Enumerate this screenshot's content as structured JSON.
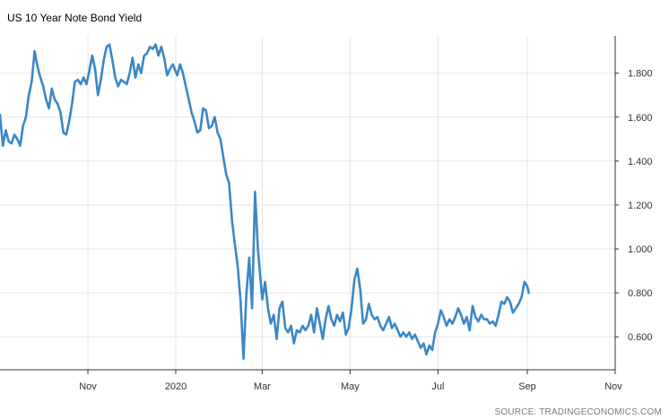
{
  "chart_data": {
    "type": "line",
    "title": "US 10 Year Note Bond Yield",
    "source": "SOURCE: TRADINGECONOMICS.COM",
    "xlabel": "",
    "ylabel": "",
    "y_ticks": [
      0.6,
      0.8,
      1.0,
      1.2,
      1.4,
      1.6,
      1.8
    ],
    "y_tick_labels": [
      "0.600",
      "0.800",
      "1.000",
      "1.200",
      "1.400",
      "1.600",
      "1.800"
    ],
    "ylim": [
      0.45,
      1.97
    ],
    "x_ticks": [
      {
        "date": "2019-11-01",
        "label": "Nov"
      },
      {
        "date": "2020-01-01",
        "label": "2020"
      },
      {
        "date": "2020-03-01",
        "label": "Mar"
      },
      {
        "date": "2020-05-01",
        "label": "May"
      },
      {
        "date": "2020-07-01",
        "label": "Jul"
      },
      {
        "date": "2020-09-01",
        "label": "Sep"
      },
      {
        "date": "2020-11-01",
        "label": "Nov"
      }
    ],
    "xlim": [
      "2019-09-01",
      "2020-11-01"
    ],
    "grid": true,
    "line_color": "#3b87c6",
    "series": [
      {
        "name": "",
        "points": [
          [
            "2019-09-01",
            1.61
          ],
          [
            "2019-09-03",
            1.47
          ],
          [
            "2019-09-05",
            1.54
          ],
          [
            "2019-09-07",
            1.49
          ],
          [
            "2019-09-09",
            1.48
          ],
          [
            "2019-09-11",
            1.52
          ],
          [
            "2019-09-13",
            1.5
          ],
          [
            "2019-09-15",
            1.47
          ],
          [
            "2019-09-17",
            1.56
          ],
          [
            "2019-09-19",
            1.6
          ],
          [
            "2019-09-21",
            1.7
          ],
          [
            "2019-09-23",
            1.76
          ],
          [
            "2019-09-25",
            1.9
          ],
          [
            "2019-09-27",
            1.83
          ],
          [
            "2019-09-29",
            1.78
          ],
          [
            "2019-10-01",
            1.74
          ],
          [
            "2019-10-03",
            1.68
          ],
          [
            "2019-10-05",
            1.64
          ],
          [
            "2019-10-07",
            1.73
          ],
          [
            "2019-10-09",
            1.68
          ],
          [
            "2019-10-11",
            1.66
          ],
          [
            "2019-10-13",
            1.62
          ],
          [
            "2019-10-15",
            1.53
          ],
          [
            "2019-10-17",
            1.52
          ],
          [
            "2019-10-19",
            1.58
          ],
          [
            "2019-10-21",
            1.66
          ],
          [
            "2019-10-23",
            1.76
          ],
          [
            "2019-10-25",
            1.77
          ],
          [
            "2019-10-27",
            1.75
          ],
          [
            "2019-10-29",
            1.78
          ],
          [
            "2019-10-31",
            1.75
          ],
          [
            "2019-11-02",
            1.81
          ],
          [
            "2019-11-04",
            1.88
          ],
          [
            "2019-11-06",
            1.82
          ],
          [
            "2019-11-08",
            1.7
          ],
          [
            "2019-11-10",
            1.77
          ],
          [
            "2019-11-12",
            1.86
          ],
          [
            "2019-11-14",
            1.92
          ],
          [
            "2019-11-16",
            1.93
          ],
          [
            "2019-11-18",
            1.86
          ],
          [
            "2019-11-20",
            1.78
          ],
          [
            "2019-11-22",
            1.74
          ],
          [
            "2019-11-24",
            1.77
          ],
          [
            "2019-11-26",
            1.76
          ],
          [
            "2019-11-28",
            1.75
          ],
          [
            "2019-11-30",
            1.8
          ],
          [
            "2019-12-02",
            1.87
          ],
          [
            "2019-12-04",
            1.78
          ],
          [
            "2019-12-06",
            1.84
          ],
          [
            "2019-12-08",
            1.8
          ],
          [
            "2019-12-10",
            1.88
          ],
          [
            "2019-12-12",
            1.89
          ],
          [
            "2019-12-14",
            1.92
          ],
          [
            "2019-12-16",
            1.91
          ],
          [
            "2019-12-18",
            1.93
          ],
          [
            "2019-12-20",
            1.88
          ],
          [
            "2019-12-22",
            1.92
          ],
          [
            "2019-12-24",
            1.87
          ],
          [
            "2019-12-26",
            1.79
          ],
          [
            "2019-12-28",
            1.82
          ],
          [
            "2019-12-30",
            1.84
          ],
          [
            "2020-01-02",
            1.79
          ],
          [
            "2020-01-04",
            1.84
          ],
          [
            "2020-01-06",
            1.8
          ],
          [
            "2020-01-08",
            1.74
          ],
          [
            "2020-01-10",
            1.68
          ],
          [
            "2020-01-12",
            1.62
          ],
          [
            "2020-01-14",
            1.58
          ],
          [
            "2020-01-16",
            1.53
          ],
          [
            "2020-01-18",
            1.54
          ],
          [
            "2020-01-20",
            1.64
          ],
          [
            "2020-01-22",
            1.63
          ],
          [
            "2020-01-24",
            1.55
          ],
          [
            "2020-01-26",
            1.56
          ],
          [
            "2020-01-28",
            1.6
          ],
          [
            "2020-01-30",
            1.53
          ],
          [
            "2020-02-01",
            1.5
          ],
          [
            "2020-02-03",
            1.42
          ],
          [
            "2020-02-05",
            1.34
          ],
          [
            "2020-02-07",
            1.3
          ],
          [
            "2020-02-09",
            1.13
          ],
          [
            "2020-02-11",
            1.02
          ],
          [
            "2020-02-13",
            0.92
          ],
          [
            "2020-02-15",
            0.76
          ],
          [
            "2020-02-17",
            0.5
          ],
          [
            "2020-02-19",
            0.79
          ],
          [
            "2020-02-21",
            0.96
          ],
          [
            "2020-02-23",
            0.73
          ],
          [
            "2020-02-25",
            1.26
          ],
          [
            "2020-02-27",
            1.0
          ],
          [
            "2020-03-01",
            0.77
          ],
          [
            "2020-03-03",
            0.85
          ],
          [
            "2020-03-05",
            0.73
          ],
          [
            "2020-03-07",
            0.66
          ],
          [
            "2020-03-09",
            0.7
          ],
          [
            "2020-03-11",
            0.59
          ],
          [
            "2020-03-13",
            0.73
          ],
          [
            "2020-03-15",
            0.76
          ],
          [
            "2020-03-17",
            0.64
          ],
          [
            "2020-03-19",
            0.62
          ],
          [
            "2020-03-21",
            0.65
          ],
          [
            "2020-03-23",
            0.57
          ],
          [
            "2020-03-25",
            0.63
          ],
          [
            "2020-03-27",
            0.62
          ],
          [
            "2020-03-29",
            0.65
          ],
          [
            "2020-03-31",
            0.63
          ],
          [
            "2020-04-02",
            0.65
          ],
          [
            "2020-04-04",
            0.7
          ],
          [
            "2020-04-06",
            0.62
          ],
          [
            "2020-04-08",
            0.73
          ],
          [
            "2020-04-10",
            0.66
          ],
          [
            "2020-04-12",
            0.59
          ],
          [
            "2020-04-14",
            0.68
          ],
          [
            "2020-04-16",
            0.74
          ],
          [
            "2020-04-18",
            0.68
          ],
          [
            "2020-04-20",
            0.65
          ],
          [
            "2020-04-22",
            0.7
          ],
          [
            "2020-04-24",
            0.67
          ],
          [
            "2020-04-26",
            0.71
          ],
          [
            "2020-04-28",
            0.61
          ],
          [
            "2020-04-30",
            0.64
          ],
          [
            "2020-05-02",
            0.73
          ],
          [
            "2020-05-04",
            0.86
          ],
          [
            "2020-05-06",
            0.91
          ],
          [
            "2020-05-08",
            0.82
          ],
          [
            "2020-05-10",
            0.66
          ],
          [
            "2020-05-12",
            0.68
          ],
          [
            "2020-05-14",
            0.75
          ],
          [
            "2020-05-16",
            0.7
          ],
          [
            "2020-05-18",
            0.68
          ],
          [
            "2020-05-20",
            0.69
          ],
          [
            "2020-05-22",
            0.65
          ],
          [
            "2020-05-24",
            0.63
          ],
          [
            "2020-05-26",
            0.66
          ],
          [
            "2020-05-28",
            0.69
          ],
          [
            "2020-05-30",
            0.64
          ],
          [
            "2020-06-01",
            0.66
          ],
          [
            "2020-06-03",
            0.63
          ],
          [
            "2020-06-05",
            0.6
          ],
          [
            "2020-06-07",
            0.62
          ],
          [
            "2020-06-09",
            0.6
          ],
          [
            "2020-06-11",
            0.62
          ],
          [
            "2020-06-13",
            0.59
          ],
          [
            "2020-06-15",
            0.61
          ],
          [
            "2020-06-17",
            0.58
          ],
          [
            "2020-06-19",
            0.55
          ],
          [
            "2020-06-21",
            0.57
          ],
          [
            "2020-06-23",
            0.52
          ],
          [
            "2020-06-25",
            0.56
          ],
          [
            "2020-06-27",
            0.54
          ],
          [
            "2020-06-29",
            0.62
          ],
          [
            "2020-07-01",
            0.66
          ],
          [
            "2020-07-03",
            0.72
          ],
          [
            "2020-07-05",
            0.69
          ],
          [
            "2020-07-07",
            0.65
          ],
          [
            "2020-07-09",
            0.68
          ],
          [
            "2020-07-11",
            0.66
          ],
          [
            "2020-07-13",
            0.69
          ],
          [
            "2020-07-15",
            0.73
          ],
          [
            "2020-07-17",
            0.7
          ],
          [
            "2020-07-19",
            0.66
          ],
          [
            "2020-07-21",
            0.69
          ],
          [
            "2020-07-23",
            0.63
          ],
          [
            "2020-07-25",
            0.74
          ],
          [
            "2020-07-27",
            0.69
          ],
          [
            "2020-07-29",
            0.67
          ],
          [
            "2020-07-31",
            0.7
          ],
          [
            "2020-08-02",
            0.68
          ],
          [
            "2020-08-04",
            0.68
          ],
          [
            "2020-08-06",
            0.66
          ],
          [
            "2020-08-08",
            0.67
          ],
          [
            "2020-08-10",
            0.65
          ],
          [
            "2020-08-12",
            0.7
          ],
          [
            "2020-08-14",
            0.76
          ],
          [
            "2020-08-16",
            0.75
          ],
          [
            "2020-08-18",
            0.78
          ],
          [
            "2020-08-20",
            0.76
          ],
          [
            "2020-08-22",
            0.71
          ],
          [
            "2020-08-24",
            0.73
          ],
          [
            "2020-08-26",
            0.75
          ],
          [
            "2020-08-28",
            0.78
          ],
          [
            "2020-08-30",
            0.85
          ],
          [
            "2020-09-01",
            0.83
          ],
          [
            "2020-09-02",
            0.8
          ]
        ]
      }
    ]
  }
}
